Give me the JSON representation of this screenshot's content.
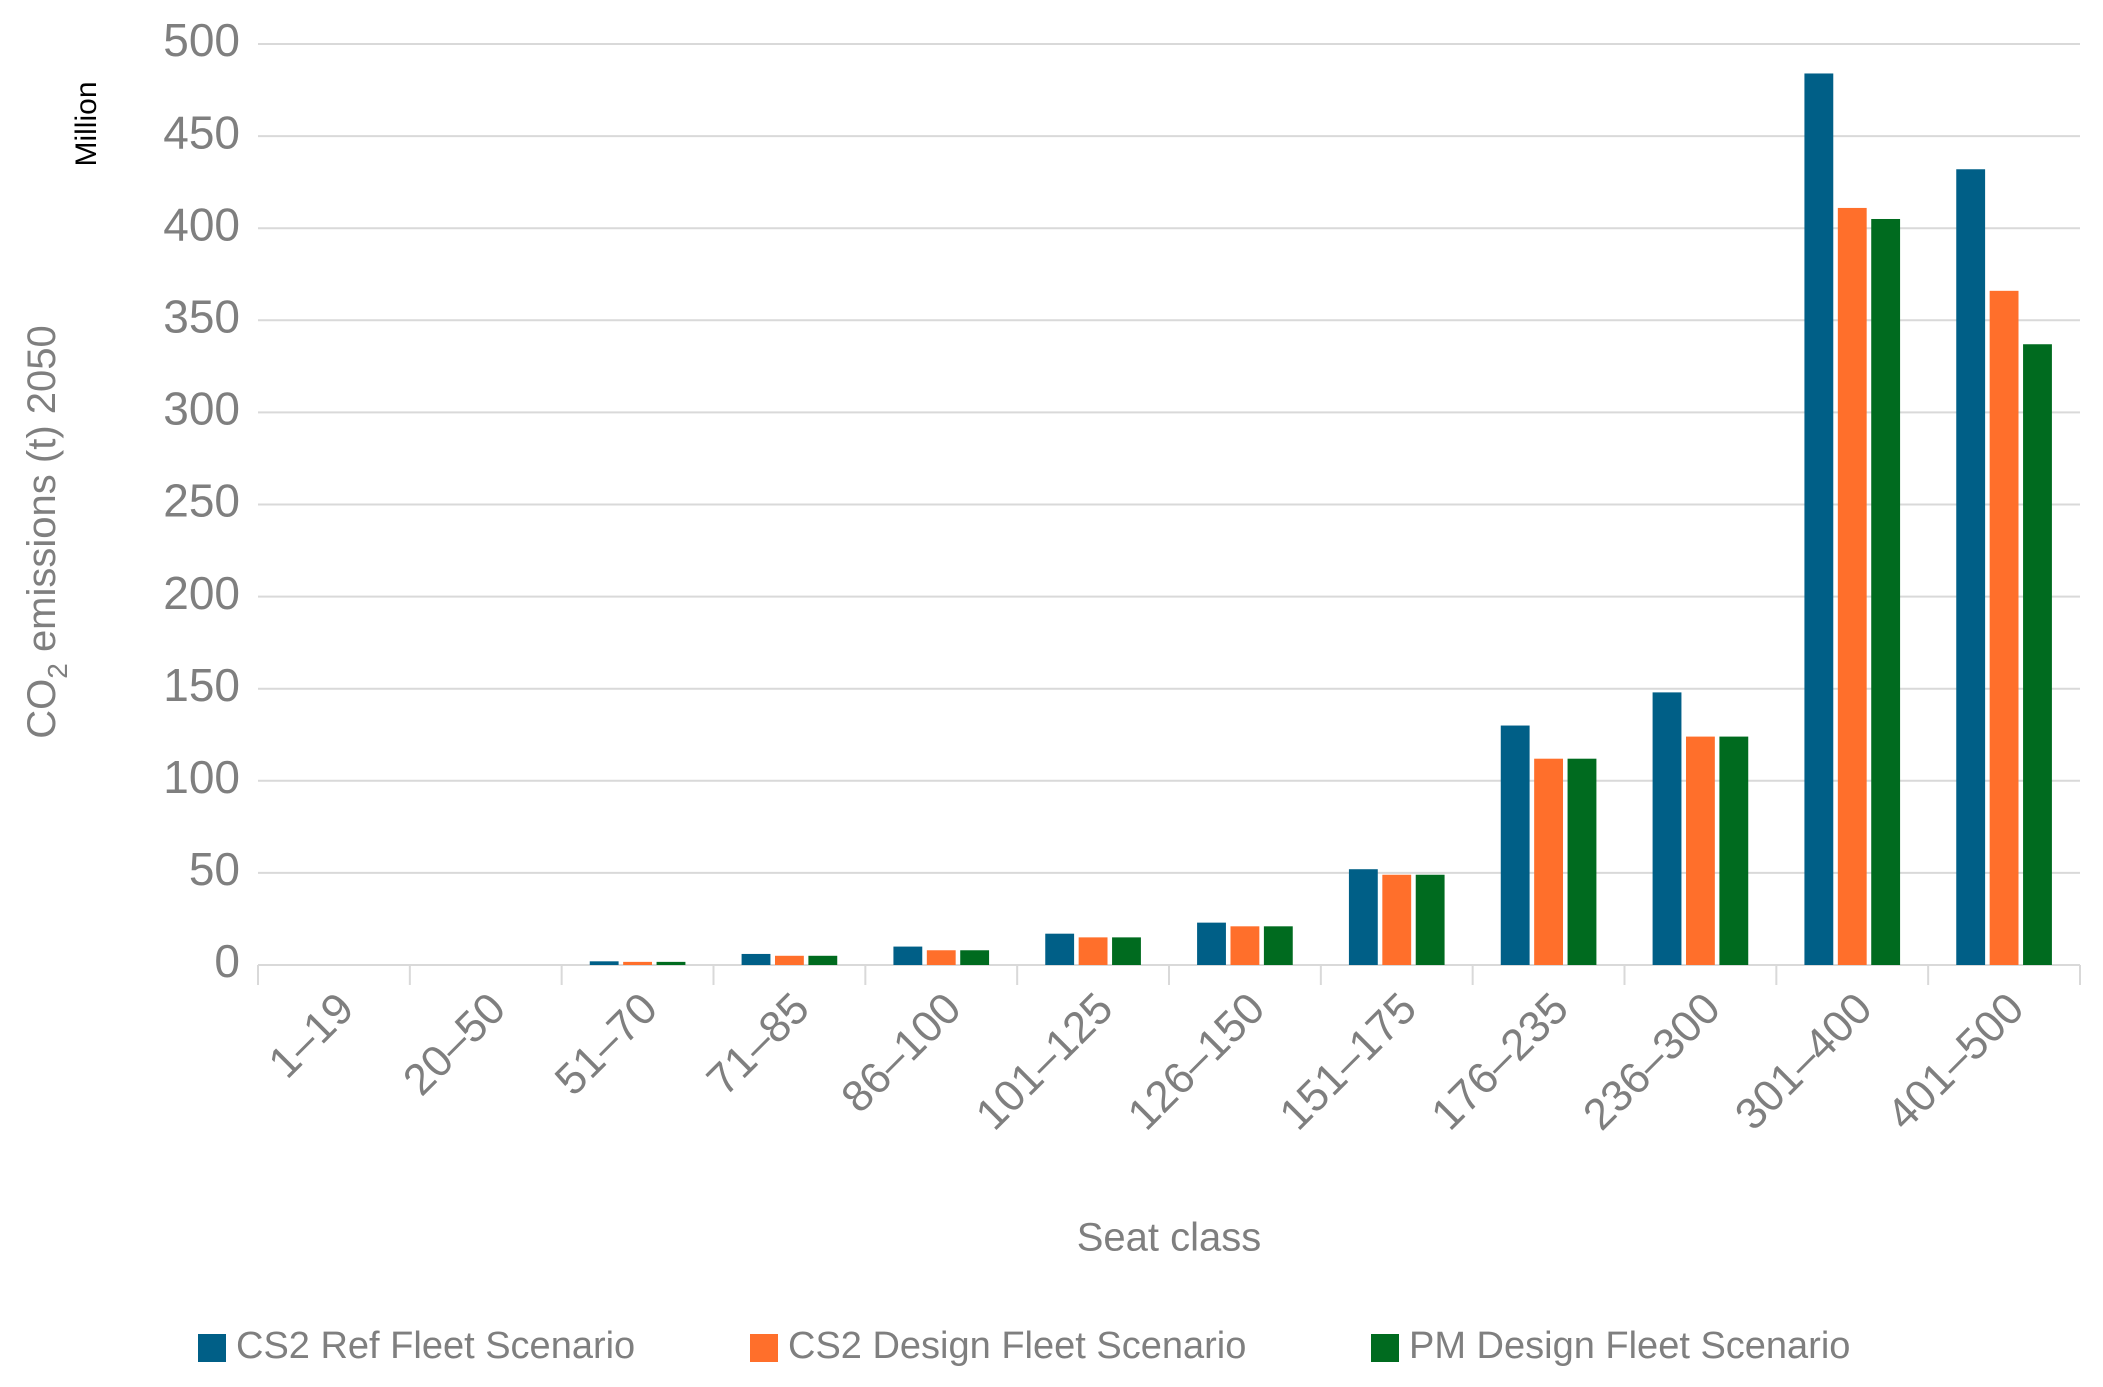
{
  "chart_data": {
    "type": "bar",
    "y_label_parts": [
      "CO",
      "2",
      " emissions (t) 2050"
    ],
    "y_unit": "Million",
    "x_label": "Seat class",
    "categories": [
      "1–19",
      "20–50",
      "51–70",
      "71–85",
      "86–100",
      "101–125",
      "126–150",
      "151–175",
      "176–235",
      "236–300",
      "301–400",
      "401–500"
    ],
    "series": [
      {
        "name": "CS2 Ref Fleet Scenario",
        "color": "#005f87",
        "values": [
          0,
          0,
          2,
          6,
          10,
          17,
          23,
          52,
          130,
          148,
          484,
          432
        ]
      },
      {
        "name": "CS2 Design Fleet Scenario",
        "color": "#ff6f2b",
        "values": [
          0,
          0,
          1.7,
          5,
          8,
          15,
          21,
          49,
          112,
          124,
          411,
          366
        ]
      },
      {
        "name": "PM Design Fleet Scenario",
        "color": "#006b1f",
        "values": [
          0,
          0,
          1.7,
          5,
          8,
          15,
          21,
          49,
          112,
          124,
          405,
          337
        ]
      }
    ],
    "ylim": [
      0,
      500
    ],
    "yticks": [
      0,
      50,
      100,
      150,
      200,
      250,
      300,
      350,
      400,
      450,
      500
    ],
    "grid": true,
    "legend": "bottom"
  }
}
